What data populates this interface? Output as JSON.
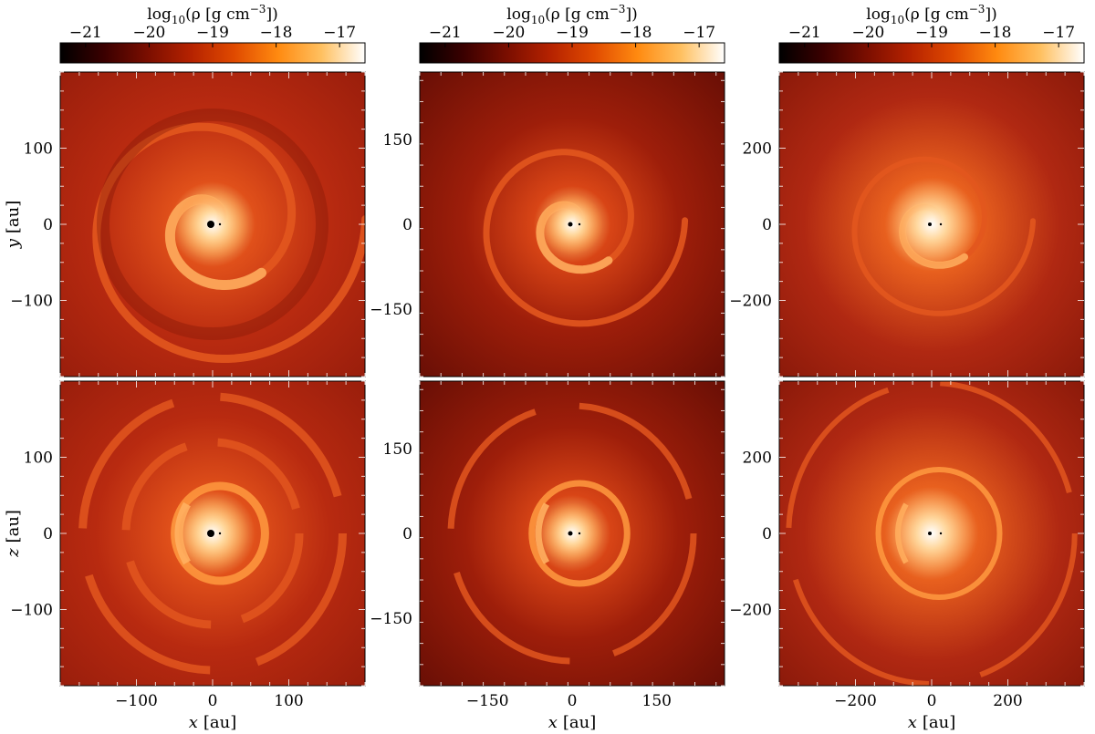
{
  "figure": {
    "colorbar": {
      "label_main": "log",
      "label_sub": "10",
      "label_rest": "(ρ [g cm",
      "label_exp": "−3",
      "label_end": "])",
      "ticks": [
        "−21",
        "−20",
        "−19",
        "−18",
        "−17"
      ],
      "tick_values": [
        -21,
        -20,
        -19,
        -18,
        -17
      ],
      "range": [
        -21.4,
        -16.6
      ],
      "colormap": [
        "#000000",
        "#3a0000",
        "#7a0e00",
        "#b52200",
        "#e04a00",
        "#ff8a10",
        "#ffc060",
        "#ffffff"
      ]
    },
    "panels": {
      "rows": [
        {
          "ylabel_var": "y",
          "ylabel_unit": "[au]",
          "view": "face-on"
        },
        {
          "ylabel_var": "z",
          "ylabel_unit": "[au]",
          "view": "edge-on"
        }
      ],
      "columns": [
        {
          "ticks": [
            "−100",
            "0",
            "100"
          ],
          "tick_values": [
            -100,
            0,
            100
          ],
          "extent": 200
        },
        {
          "ticks": [
            "−150",
            "0",
            "150"
          ],
          "tick_values": [
            -150,
            0,
            150
          ],
          "extent": 270
        },
        {
          "ticks": [
            "−200",
            "0",
            "200"
          ],
          "tick_values": [
            -200,
            0,
            200
          ],
          "extent": 400
        }
      ],
      "xlabel_var": "x",
      "xlabel_unit": "[au]"
    }
  }
}
